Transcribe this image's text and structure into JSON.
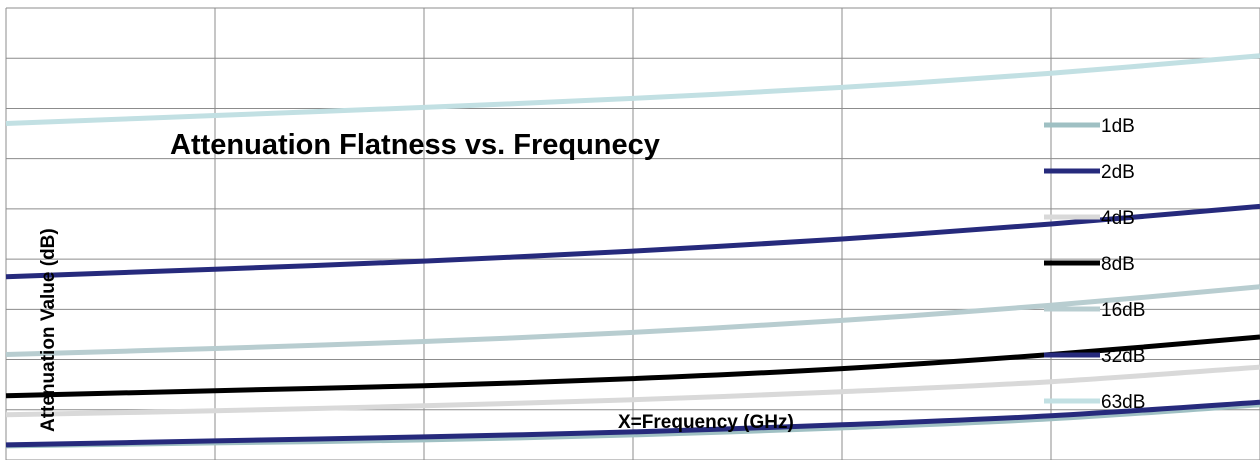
{
  "chart_data": {
    "type": "line",
    "title": "Attenuation Flatness vs. Frequnecy",
    "xlabel": "X=Frequency (GHz)",
    "ylabel": "Attenuation Value (dB)",
    "x": [
      0,
      1,
      2,
      3,
      4,
      5,
      6
    ],
    "xlim": [
      0,
      6
    ],
    "ylim": [
      0,
      9
    ],
    "grid": true,
    "legend_position": "right",
    "series": [
      {
        "name": "1dB",
        "color": "#9fc0c3",
        "values": [
          0.28,
          0.34,
          0.4,
          0.5,
          0.64,
          0.82,
          1.1
        ]
      },
      {
        "name": "2dB",
        "color": "#262a7c",
        "values": [
          0.3,
          0.38,
          0.46,
          0.56,
          0.7,
          0.88,
          1.15
        ]
      },
      {
        "name": "4dB",
        "color": "#d9d9d9",
        "values": [
          0.9,
          0.98,
          1.08,
          1.2,
          1.36,
          1.56,
          1.85
        ]
      },
      {
        "name": "8dB",
        "color": "#000000",
        "values": [
          1.28,
          1.38,
          1.48,
          1.62,
          1.82,
          2.1,
          2.45
        ]
      },
      {
        "name": "16dB",
        "color": "#b8cdd0",
        "values": [
          2.1,
          2.22,
          2.36,
          2.54,
          2.78,
          3.08,
          3.45
        ]
      },
      {
        "name": "32dB",
        "color": "#262a7c",
        "values": [
          3.65,
          3.8,
          3.96,
          4.16,
          4.4,
          4.7,
          5.05
        ]
      },
      {
        "name": "63dB",
        "color": "#c2e0e3",
        "values": [
          6.7,
          6.86,
          7.02,
          7.2,
          7.42,
          7.7,
          8.05
        ]
      }
    ]
  }
}
